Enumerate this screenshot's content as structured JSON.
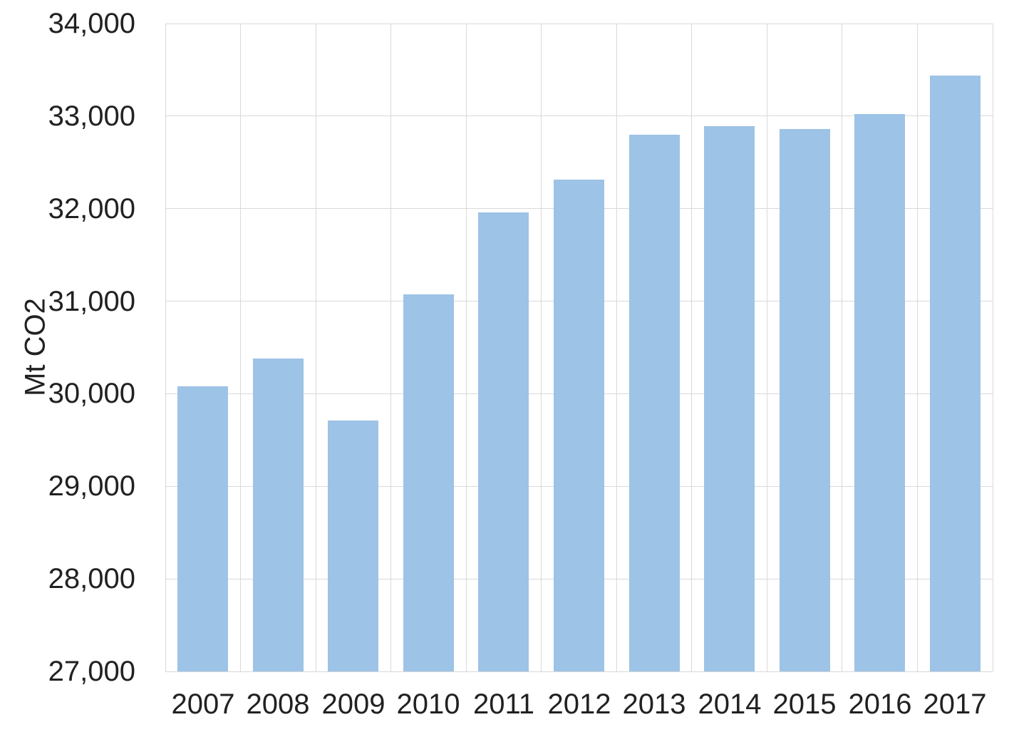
{
  "chart_data": {
    "type": "bar",
    "title": "",
    "categories": [
      "2007",
      "2008",
      "2009",
      "2010",
      "2011",
      "2012",
      "2013",
      "2014",
      "2015",
      "2016",
      "2017"
    ],
    "values": [
      30080,
      30380,
      29710,
      31070,
      31960,
      32310,
      32800,
      32890,
      32860,
      33020,
      33440
    ],
    "xlabel": "",
    "ylabel": "Mt CO2",
    "ylim": [
      27000,
      34000
    ],
    "y_tick_step": 1000,
    "y_tick_labels": [
      "27,000",
      "28,000",
      "29,000",
      "30,000",
      "31,000",
      "32,000",
      "33,000",
      "34,000"
    ],
    "grid": true,
    "legend": "none",
    "colors": {
      "bar_fill": "#9DC3E6",
      "gridline": "#D9D9D9",
      "text": "#212121",
      "background": "#FFFFFF"
    }
  }
}
